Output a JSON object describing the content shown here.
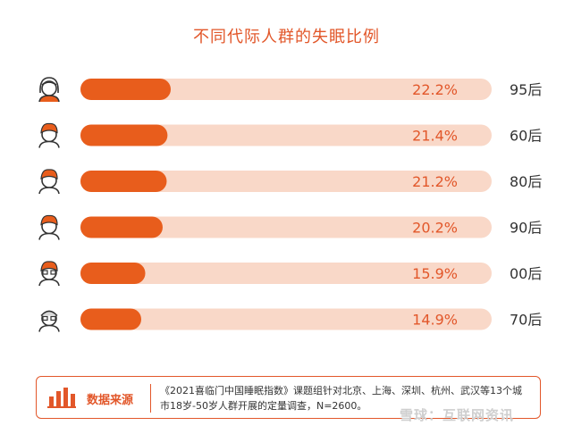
{
  "chart_data": {
    "type": "bar",
    "title": "不同代际人群的失眠比例",
    "categories": [
      "95后",
      "60后",
      "80后",
      "90后",
      "00后",
      "70后"
    ],
    "values": [
      22.2,
      21.4,
      21.2,
      20.2,
      15.9,
      14.9
    ],
    "value_labels": [
      "22.2%",
      "21.4%",
      "21.2%",
      "20.2%",
      "15.9%",
      "14.9%"
    ],
    "xlim": [
      0,
      100
    ],
    "grid": false,
    "legend": "none",
    "colors": {
      "bar": "#e85d1c",
      "track": "#f9d8c8",
      "text": "#e2572a"
    }
  },
  "source": {
    "label": "数据来源",
    "text": "《2021喜临门中国睡眠指数》课题组针对北京、上海、深圳、杭州、武汉等13个城市18岁-50岁人群开展的定量调查，N=2600。"
  },
  "watermark": "雪球：互联网资讯",
  "icons": [
    "female-avatar-icon",
    "male-avatar-icon",
    "male-avatar-icon",
    "male-avatar-icon",
    "glasses-avatar-icon",
    "elder-avatar-icon",
    "bar-chart-icon"
  ]
}
